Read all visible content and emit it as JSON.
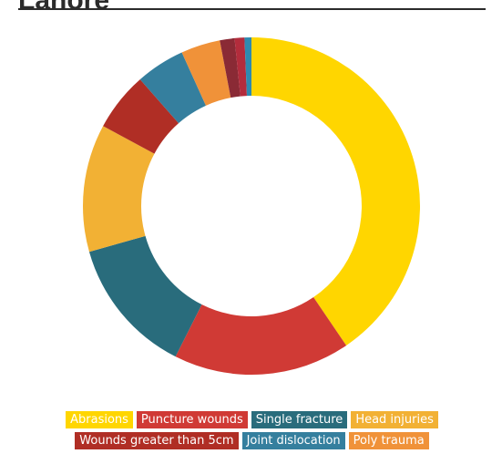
{
  "page": {
    "title": "Lahore"
  },
  "chart_data": {
    "type": "pie",
    "donut": true,
    "categories": [
      "Abrasions",
      "Puncture wounds",
      "Single fracture",
      "Head injuries",
      "Wounds greater than 5cm",
      "Joint dislocation",
      "Poly trauma",
      "",
      "",
      ""
    ],
    "values": [
      43,
      18,
      14,
      13,
      6,
      5,
      4,
      1.5,
      1,
      0.7
    ],
    "colors": [
      "#FFD600",
      "#D03A35",
      "#296C7C",
      "#F2B134",
      "#B02E25",
      "#357F9E",
      "#F09239",
      "#8A2A35",
      "#B32C3C",
      "#2E8AB0"
    ],
    "legend_placement": "bottom"
  }
}
